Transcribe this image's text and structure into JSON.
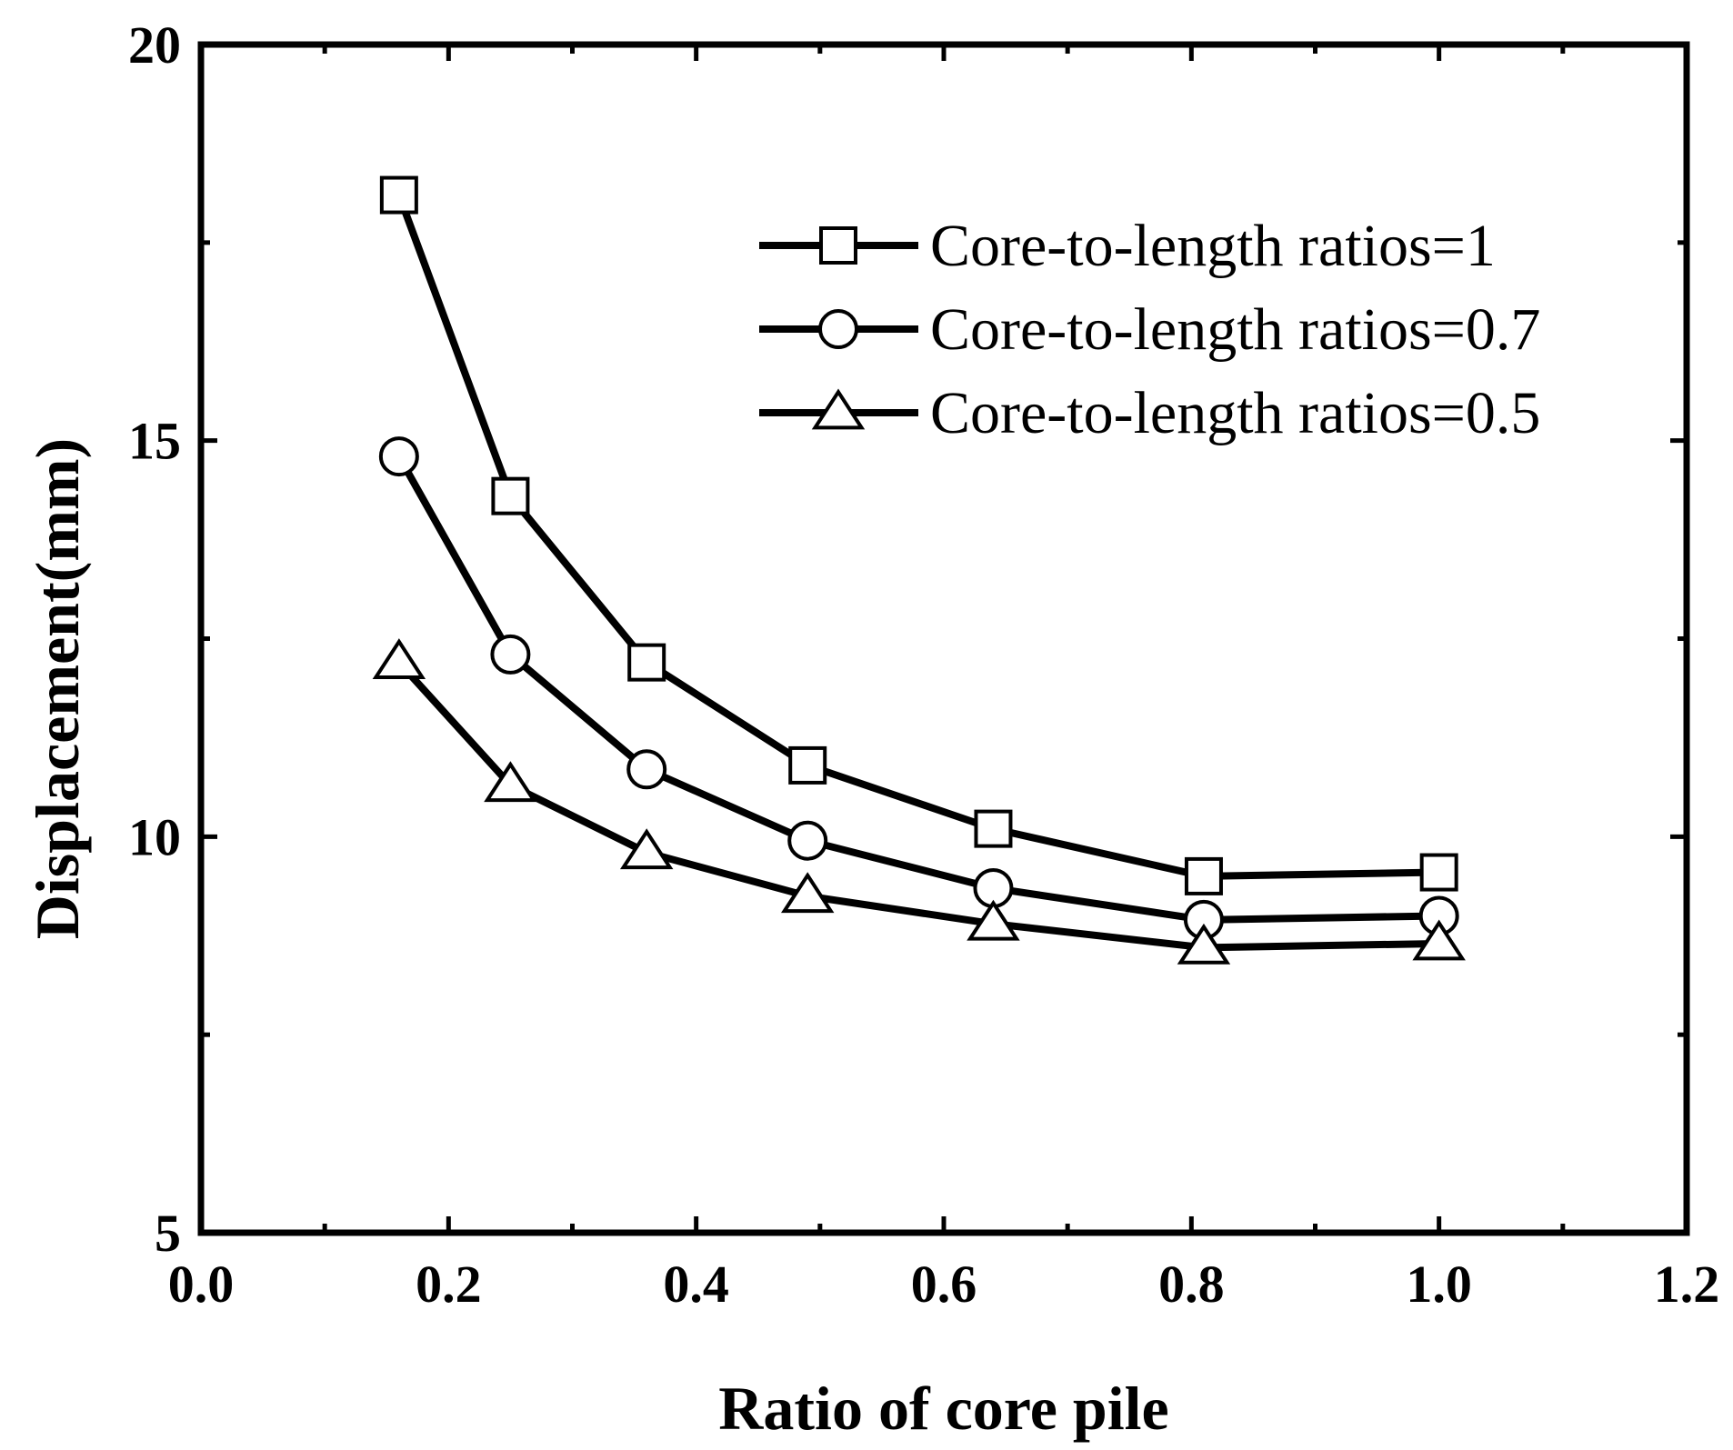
{
  "chart_data": {
    "type": "line",
    "title": "",
    "xlabel": "Ratio of core pile",
    "ylabel": "Displacement(mm)",
    "xlim": [
      0.0,
      1.2
    ],
    "ylim": [
      5,
      20
    ],
    "x_ticks": [
      0.0,
      0.2,
      0.4,
      0.6,
      0.8,
      1.0,
      1.2
    ],
    "x_tick_labels": [
      "0.0",
      "0.2",
      "0.4",
      "0.6",
      "0.8",
      "1.0",
      "1.2"
    ],
    "y_ticks": [
      5,
      10,
      15,
      20
    ],
    "y_tick_labels": [
      "5",
      "10",
      "15",
      "20"
    ],
    "grid": false,
    "legend_position": "top-right",
    "x": [
      0.16,
      0.25,
      0.36,
      0.49,
      0.64,
      0.81,
      1.0
    ],
    "series": [
      {
        "name": "Core-to-length ratios=1",
        "marker": "square",
        "values": [
          18.1,
          14.3,
          12.2,
          10.9,
          10.1,
          9.5,
          9.55
        ]
      },
      {
        "name": "Core-to-length ratios=0.7",
        "marker": "circle",
        "values": [
          14.8,
          12.3,
          10.85,
          9.95,
          9.35,
          8.95,
          9.0
        ]
      },
      {
        "name": "Core-to-length ratios=0.5",
        "marker": "triangle",
        "values": [
          12.2,
          10.65,
          9.8,
          9.25,
          8.9,
          8.6,
          8.65
        ]
      }
    ]
  }
}
